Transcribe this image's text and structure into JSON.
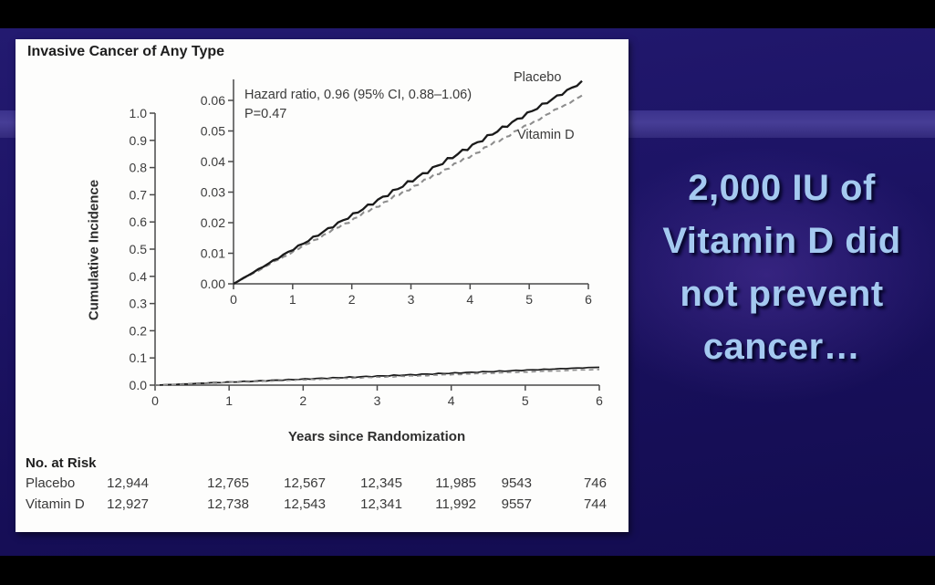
{
  "slide": {
    "caption_lines": [
      "2,000 IU of",
      "Vitamin D did",
      "not prevent",
      "cancer…"
    ],
    "caption_color": "#a4c9f0",
    "background_color": "#1d1466"
  },
  "figure": {
    "title": "Invasive Cancer of Any Type",
    "ylabel": "Cumulative Incidence",
    "xlabel": "Years since Randomization",
    "annotation_line1": "Hazard ratio, 0.96 (95% CI, 0.88–1.06)",
    "annotation_line2": "P=0.47",
    "series_labels": {
      "placebo": "Placebo",
      "vitamin_d": "Vitamin D"
    }
  },
  "chart_data": {
    "type": "line",
    "title": "Invasive Cancer of Any Type",
    "xlabel": "Years since Randomization",
    "ylabel": "Cumulative Incidence",
    "annotations": [
      "Hazard ratio, 0.96 (95% CI, 0.88–1.06)",
      "P=0.47"
    ],
    "main_axis": {
      "xlim": [
        0,
        6
      ],
      "ylim": [
        0.0,
        1.0
      ],
      "xticks": [
        "0",
        "1",
        "2",
        "3",
        "4",
        "5",
        "6"
      ],
      "yticks": [
        "0.0",
        "0.1",
        "0.2",
        "0.3",
        "0.4",
        "0.5",
        "0.6",
        "0.7",
        "0.8",
        "0.9",
        "1.0"
      ],
      "grid": false
    },
    "inset_axis": {
      "xlim": [
        0,
        6
      ],
      "ylim": [
        0.0,
        0.06
      ],
      "xticks": [
        "0",
        "1",
        "2",
        "3",
        "4",
        "5",
        "6"
      ],
      "yticks": [
        "0.00",
        "0.01",
        "0.02",
        "0.03",
        "0.04",
        "0.05",
        "0.06"
      ],
      "grid": false
    },
    "series": [
      {
        "name": "Placebo",
        "style": "solid",
        "color": "#1a1a1a",
        "x": [
          0,
          6
        ],
        "y": [
          0.0,
          0.066
        ]
      },
      {
        "name": "Vitamin D",
        "style": "dashed",
        "color": "#8d8d8d",
        "x": [
          0,
          6
        ],
        "y": [
          0.0,
          0.062
        ]
      }
    ],
    "risk_table": {
      "header": "No. at Risk",
      "timepoints": [
        0,
        1,
        2,
        3,
        4,
        5,
        6
      ],
      "rows": [
        {
          "label": "Placebo",
          "values": [
            "12,944",
            "12,765",
            "12,567",
            "12,345",
            "11,985",
            "9543",
            "746"
          ]
        },
        {
          "label": "Vitamin D",
          "values": [
            "12,927",
            "12,738",
            "12,543",
            "12,341",
            "11,992",
            "9557",
            "744"
          ]
        }
      ]
    }
  }
}
